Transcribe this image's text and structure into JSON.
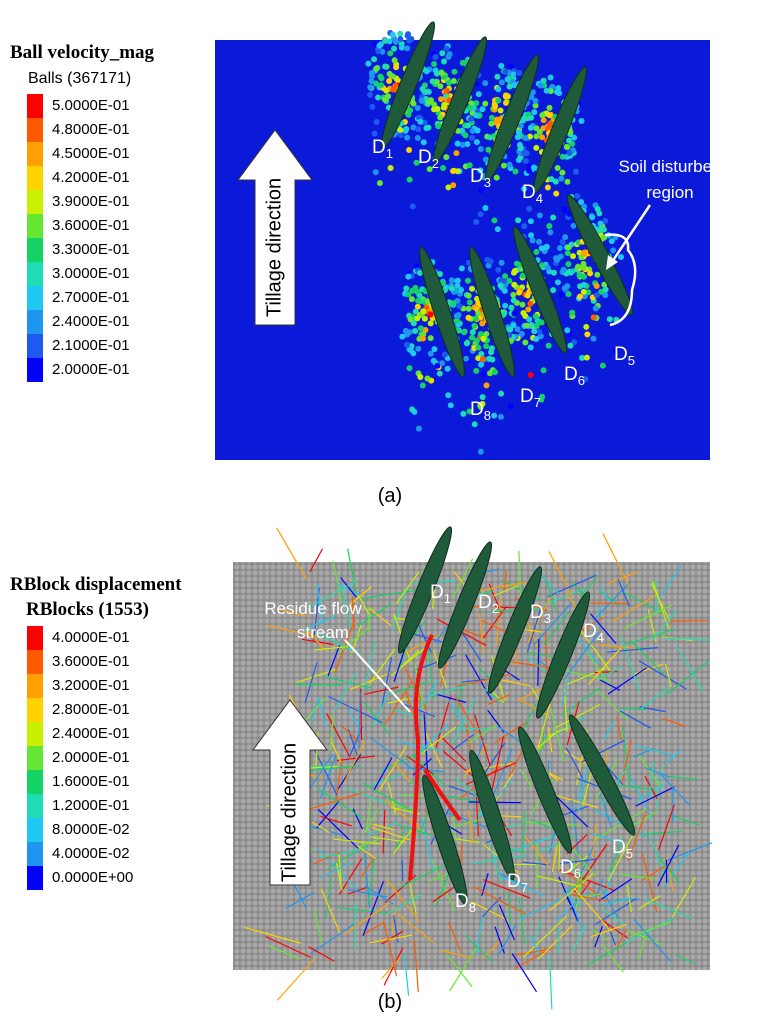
{
  "panel_a": {
    "title": "Ball velocity_mag",
    "subtitle": "Balls (367171)",
    "legend": [
      "5.0000E-01",
      "4.8000E-01",
      "4.5000E-01",
      "4.2000E-01",
      "3.9000E-01",
      "3.6000E-01",
      "3.3000E-01",
      "3.0000E-01",
      "2.7000E-01",
      "2.4000E-01",
      "2.1000E-01",
      "2.0000E-01"
    ],
    "arrow_label": "Tillage direction",
    "annotation": [
      "Soil disturbed",
      "region"
    ],
    "discs": [
      {
        "name": "D",
        "sub": "1"
      },
      {
        "name": "D",
        "sub": "2"
      },
      {
        "name": "D",
        "sub": "3"
      },
      {
        "name": "D",
        "sub": "4"
      },
      {
        "name": "D",
        "sub": "5"
      },
      {
        "name": "D",
        "sub": "6"
      },
      {
        "name": "D",
        "sub": "7"
      },
      {
        "name": "D",
        "sub": "8"
      }
    ],
    "caption": "(a)"
  },
  "panel_b": {
    "title": "RBlock displacement",
    "subtitle": "RBlocks (1553)",
    "legend": [
      "4.0000E-01",
      "3.6000E-01",
      "3.2000E-01",
      "2.8000E-01",
      "2.4000E-01",
      "2.0000E-01",
      "1.6000E-01",
      "1.2000E-01",
      "8.0000E-02",
      "4.0000E-02",
      "0.0000E+00"
    ],
    "arrow_label": "Tillage direction",
    "annotation": [
      "Residue flow",
      "stream"
    ],
    "discs": [
      {
        "name": "D",
        "sub": "1"
      },
      {
        "name": "D",
        "sub": "2"
      },
      {
        "name": "D",
        "sub": "3"
      },
      {
        "name": "D",
        "sub": "4"
      },
      {
        "name": "D",
        "sub": "5"
      },
      {
        "name": "D",
        "sub": "6"
      },
      {
        "name": "D",
        "sub": "7"
      },
      {
        "name": "D",
        "sub": "8"
      }
    ],
    "caption": "(b)"
  }
}
